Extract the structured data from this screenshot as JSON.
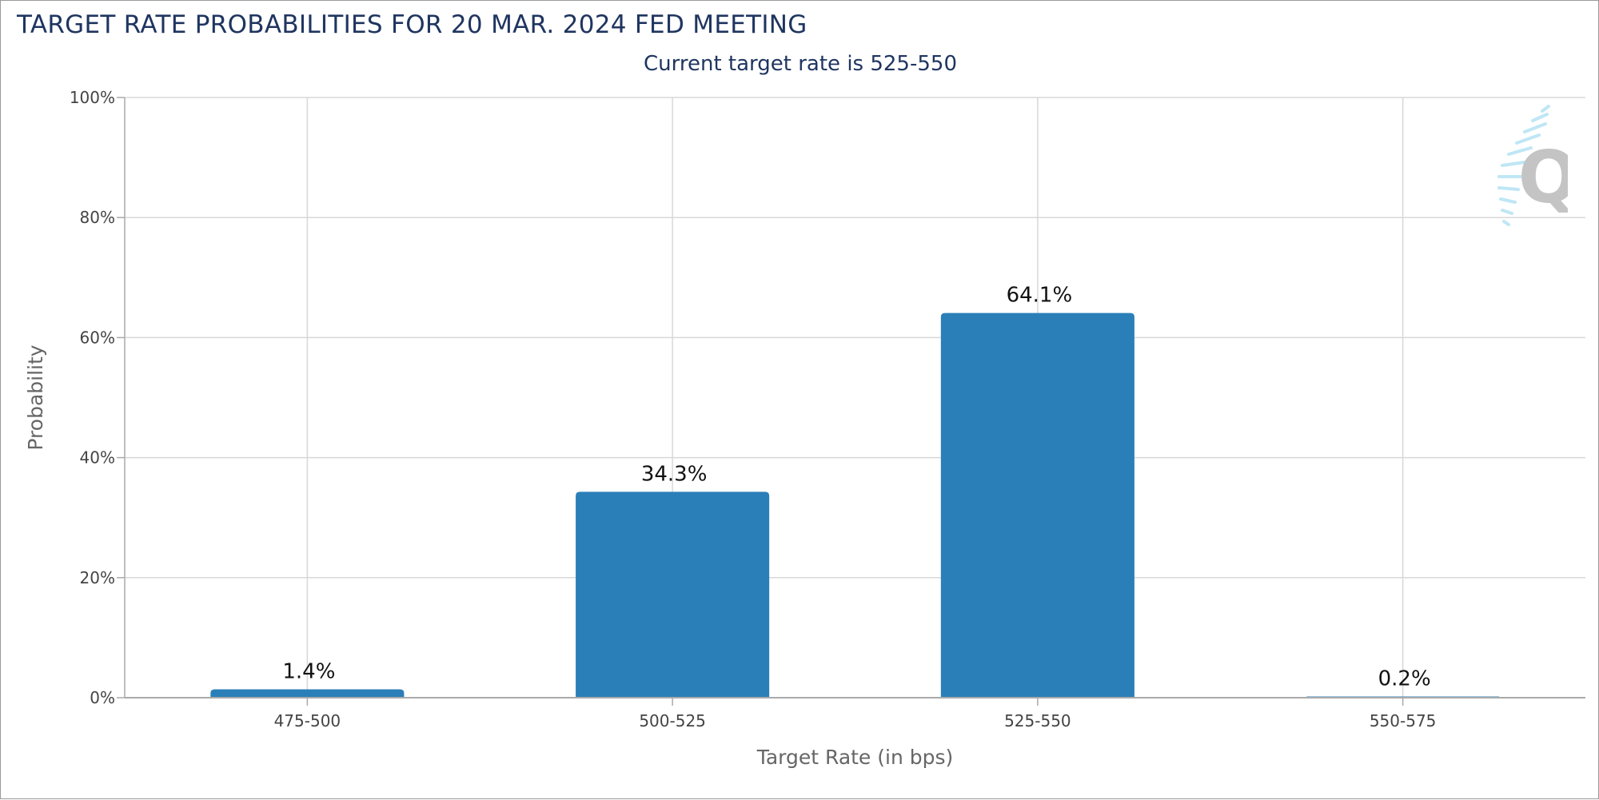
{
  "title": "TARGET RATE PROBABILITIES FOR 20 MAR. 2024 FED MEETING",
  "subtitle": "Current target rate is 525-550",
  "chart_data": {
    "type": "bar",
    "categories": [
      "475-500",
      "500-525",
      "525-550",
      "550-575"
    ],
    "values": [
      1.4,
      34.3,
      64.1,
      0.2
    ],
    "value_labels": [
      "1.4%",
      "34.3%",
      "64.1%",
      "0.2%"
    ],
    "xlabel": "Target Rate (in bps)",
    "ylabel": "Probability",
    "ylim": [
      0,
      100
    ],
    "yticks": [
      0,
      20,
      40,
      60,
      80,
      100
    ],
    "ytick_labels": [
      "0%",
      "20%",
      "40%",
      "60%",
      "80%",
      "100%"
    ],
    "grid": true,
    "bar_color": "#2a7fb8"
  },
  "colors": {
    "title": "#1f3560",
    "grid": "#d8d8d8",
    "axis_text": "#444444",
    "axis_title": "#666666",
    "bar": "#2a7fb8"
  },
  "logo_letter": "Q"
}
